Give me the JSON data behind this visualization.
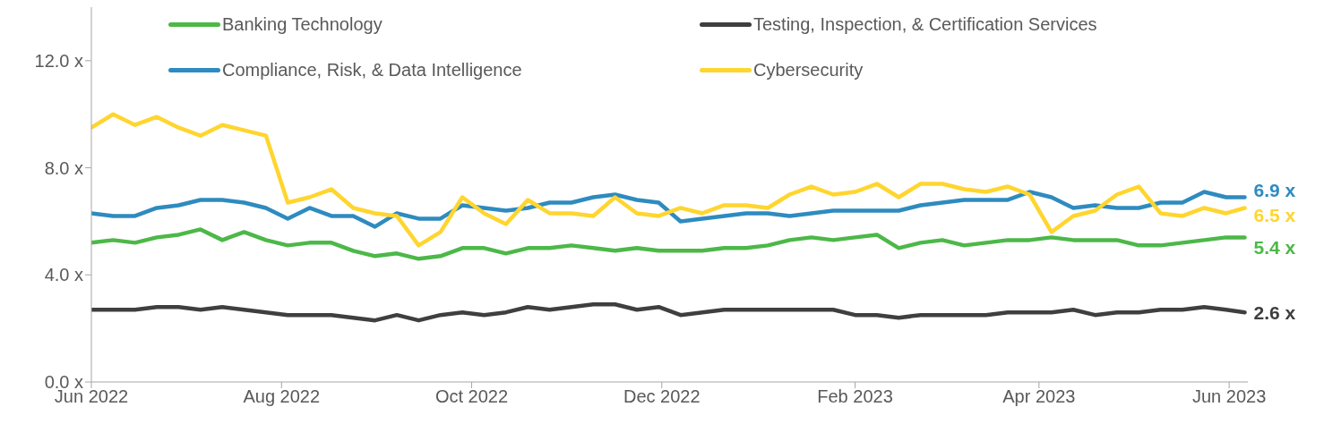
{
  "chart_data": {
    "type": "line",
    "x": [
      "2022-06-01",
      "2022-06-08",
      "2022-06-15",
      "2022-06-22",
      "2022-06-29",
      "2022-07-06",
      "2022-07-13",
      "2022-07-20",
      "2022-07-27",
      "2022-08-03",
      "2022-08-10",
      "2022-08-17",
      "2022-08-24",
      "2022-08-31",
      "2022-09-07",
      "2022-09-14",
      "2022-09-21",
      "2022-09-28",
      "2022-10-05",
      "2022-10-12",
      "2022-10-19",
      "2022-10-26",
      "2022-11-02",
      "2022-11-09",
      "2022-11-16",
      "2022-11-23",
      "2022-11-30",
      "2022-12-07",
      "2022-12-14",
      "2022-12-21",
      "2022-12-28",
      "2023-01-04",
      "2023-01-11",
      "2023-01-18",
      "2023-01-25",
      "2023-02-01",
      "2023-02-08",
      "2023-02-15",
      "2023-02-22",
      "2023-03-01",
      "2023-03-08",
      "2023-03-15",
      "2023-03-22",
      "2023-03-29",
      "2023-04-05",
      "2023-04-12",
      "2023-04-19",
      "2023-04-26",
      "2023-05-03",
      "2023-05-10",
      "2023-05-17",
      "2023-05-24",
      "2023-05-31",
      "2023-06-06"
    ],
    "series": [
      {
        "name": "Banking Technology",
        "color": "#4cb848",
        "values": [
          5.2,
          5.3,
          5.2,
          5.4,
          5.5,
          5.7,
          5.3,
          5.6,
          5.3,
          5.1,
          5.2,
          5.2,
          4.9,
          4.7,
          4.8,
          4.6,
          4.7,
          5.0,
          5.0,
          4.8,
          5.0,
          5.0,
          5.1,
          5.0,
          4.9,
          5.0,
          4.9,
          4.9,
          4.9,
          5.0,
          5.0,
          5.1,
          5.3,
          5.4,
          5.3,
          5.4,
          5.5,
          5.0,
          5.2,
          5.3,
          5.1,
          5.2,
          5.3,
          5.3,
          5.4,
          5.3,
          5.3,
          5.3,
          5.1,
          5.1,
          5.2,
          5.3,
          5.4,
          5.4
        ]
      },
      {
        "name": "Testing, Inspection, & Certification Services",
        "color": "#3f3f3f",
        "values": [
          2.7,
          2.7,
          2.7,
          2.8,
          2.8,
          2.7,
          2.8,
          2.7,
          2.6,
          2.5,
          2.5,
          2.5,
          2.4,
          2.3,
          2.5,
          2.3,
          2.5,
          2.6,
          2.5,
          2.6,
          2.8,
          2.7,
          2.8,
          2.9,
          2.9,
          2.7,
          2.8,
          2.5,
          2.6,
          2.7,
          2.7,
          2.7,
          2.7,
          2.7,
          2.7,
          2.5,
          2.5,
          2.4,
          2.5,
          2.5,
          2.5,
          2.5,
          2.6,
          2.6,
          2.6,
          2.7,
          2.5,
          2.6,
          2.6,
          2.7,
          2.7,
          2.8,
          2.7,
          2.6
        ]
      },
      {
        "name": "Compliance, Risk, & Data Intelligence",
        "color": "#2e8bc0",
        "values": [
          6.3,
          6.2,
          6.2,
          6.5,
          6.6,
          6.8,
          6.8,
          6.7,
          6.5,
          6.1,
          6.5,
          6.2,
          6.2,
          5.8,
          6.3,
          6.1,
          6.1,
          6.6,
          6.5,
          6.4,
          6.5,
          6.7,
          6.7,
          6.9,
          7.0,
          6.8,
          6.7,
          6.0,
          6.1,
          6.2,
          6.3,
          6.3,
          6.2,
          6.3,
          6.4,
          6.4,
          6.4,
          6.4,
          6.6,
          6.7,
          6.8,
          6.8,
          6.8,
          7.1,
          6.9,
          6.5,
          6.6,
          6.5,
          6.5,
          6.7,
          6.7,
          7.1,
          6.9,
          6.9
        ]
      },
      {
        "name": "Cybersecurity",
        "color": "#ffd52f",
        "values": [
          9.5,
          10.0,
          9.6,
          9.9,
          9.5,
          9.2,
          9.6,
          9.4,
          9.2,
          6.7,
          6.9,
          7.2,
          6.5,
          6.3,
          6.2,
          5.1,
          5.6,
          6.9,
          6.3,
          5.9,
          6.8,
          6.3,
          6.3,
          6.2,
          6.9,
          6.3,
          6.2,
          6.5,
          6.3,
          6.6,
          6.6,
          6.5,
          7.0,
          7.3,
          7.0,
          7.1,
          7.4,
          6.9,
          7.4,
          7.4,
          7.2,
          7.1,
          7.3,
          7.0,
          5.6,
          6.2,
          6.4,
          7.0,
          7.3,
          6.3,
          6.2,
          6.5,
          6.3,
          6.5
        ]
      }
    ],
    "xlim": [
      "2022-06-01",
      "2023-06-07"
    ],
    "xticks": [
      {
        "value": "2022-06-01",
        "label": "Jun 2022"
      },
      {
        "value": "2022-08-01",
        "label": "Aug 2022"
      },
      {
        "value": "2022-10-01",
        "label": "Oct 2022"
      },
      {
        "value": "2022-12-01",
        "label": "Dec 2022"
      },
      {
        "value": "2023-02-01",
        "label": "Feb 2023"
      },
      {
        "value": "2023-04-01",
        "label": "Apr 2023"
      },
      {
        "value": "2023-06-01",
        "label": "Jun 2023"
      }
    ],
    "ylim": [
      0,
      14
    ],
    "yticks": [
      {
        "value": 0,
        "label": "0.0 x"
      },
      {
        "value": 4,
        "label": "4.0 x"
      },
      {
        "value": 8,
        "label": "8.0 x"
      },
      {
        "value": 12,
        "label": "12.0 x"
      }
    ],
    "annotations": [
      {
        "text": "6.9 x",
        "x": "2023-06-06",
        "y": 6.9
      },
      {
        "text": "6.5 x",
        "x": "2023-06-06",
        "y": 6.5
      },
      {
        "text": "5.4 x",
        "x": "2023-06-06",
        "y": 5.4
      },
      {
        "text": "2.6 x",
        "x": "2023-06-06",
        "y": 2.6
      }
    ],
    "legend": "top",
    "grid": false,
    "marker": "none",
    "line_style": "solid"
  }
}
